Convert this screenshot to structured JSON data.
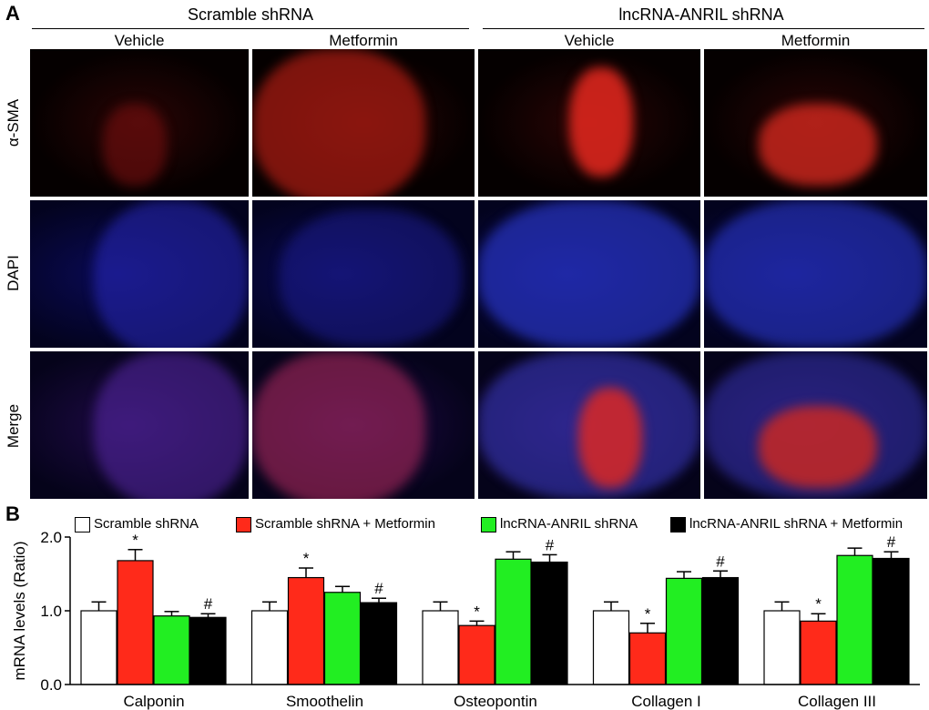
{
  "panel_a": {
    "letter": "A",
    "groups": [
      "Scramble shRNA",
      "lncRNA-ANRIL shRNA"
    ],
    "columns": [
      "Vehicle",
      "Metformin",
      "Vehicle",
      "Metformin"
    ],
    "rows": [
      "α-SMA",
      "DAPI",
      "Merge"
    ]
  },
  "panel_b": {
    "letter": "B"
  },
  "chart_data": {
    "type": "bar",
    "ylabel": "mRNA levels (Ratio)",
    "ylim": [
      0,
      2.0
    ],
    "yticks": [
      "0.0",
      "1.0",
      "2.0"
    ],
    "categories": [
      "Calponin",
      "Smoothelin",
      "Osteopontin",
      "Collagen I",
      "Collagen III"
    ],
    "legend_position": "top",
    "series": [
      {
        "name": "Scramble shRNA",
        "color": "#ffffff",
        "values": [
          1.0,
          1.0,
          1.0,
          1.0,
          1.0
        ],
        "errors": [
          0.12,
          0.12,
          0.12,
          0.12,
          0.12
        ],
        "marks": [
          "",
          "",
          "",
          "",
          ""
        ]
      },
      {
        "name": "Scramble shRNA + Metformin",
        "color": "#ff2a1a",
        "values": [
          1.68,
          1.45,
          0.8,
          0.7,
          0.86
        ],
        "errors": [
          0.15,
          0.13,
          0.06,
          0.13,
          0.1
        ],
        "marks": [
          "*",
          "*",
          "*",
          "*",
          "*"
        ]
      },
      {
        "name": "lncRNA-ANRIL shRNA",
        "color": "#22ee22",
        "values": [
          0.93,
          1.25,
          1.7,
          1.44,
          1.75
        ],
        "errors": [
          0.06,
          0.08,
          0.1,
          0.09,
          0.1
        ],
        "marks": [
          "",
          "",
          "",
          "",
          ""
        ]
      },
      {
        "name": "lncRNA-ANRIL shRNA + Metformin",
        "color": "#000000",
        "values": [
          0.91,
          1.11,
          1.66,
          1.45,
          1.71
        ],
        "errors": [
          0.05,
          0.06,
          0.1,
          0.09,
          0.09
        ],
        "marks": [
          "#",
          "#",
          "#",
          "#",
          "#"
        ]
      }
    ]
  }
}
